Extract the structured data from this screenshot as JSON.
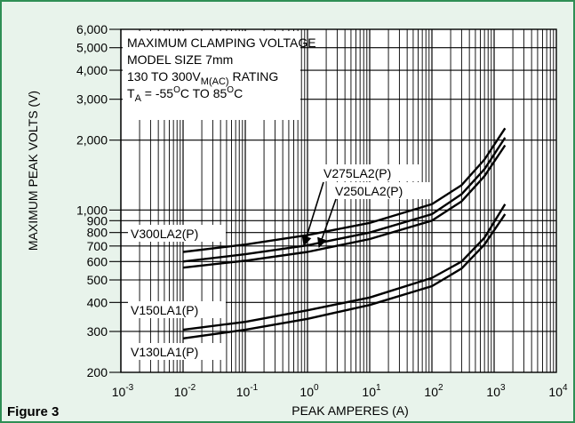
{
  "figure_label": "Figure 3",
  "chart_data": {
    "type": "line",
    "xlabel": "PEAK AMPERES (A)",
    "ylabel": "MAXIMUM PEAK VOLTS (V)",
    "xscale": "log",
    "yscale": "log",
    "xlim": [
      0.001,
      10000
    ],
    "ylim": [
      200,
      6000
    ],
    "grid": true,
    "x_ticks": [
      {
        "value": 0.001,
        "base": "10",
        "exp": "-3"
      },
      {
        "value": 0.01,
        "base": "10",
        "exp": "-2"
      },
      {
        "value": 0.1,
        "base": "10",
        "exp": "-1"
      },
      {
        "value": 1,
        "base": "10",
        "exp": "0"
      },
      {
        "value": 10,
        "base": "10",
        "exp": "1"
      },
      {
        "value": 100,
        "base": "10",
        "exp": "2"
      },
      {
        "value": 1000,
        "base": "10",
        "exp": "3"
      },
      {
        "value": 10000,
        "base": "10",
        "exp": "4"
      }
    ],
    "y_ticks": [
      {
        "value": 200,
        "label": "200"
      },
      {
        "value": 300,
        "label": "300"
      },
      {
        "value": 400,
        "label": "400"
      },
      {
        "value": 500,
        "label": "500"
      },
      {
        "value": 600,
        "label": "600"
      },
      {
        "value": 700,
        "label": "700"
      },
      {
        "value": 800,
        "label": "800"
      },
      {
        "value": 900,
        "label": "900"
      },
      {
        "value": 1000,
        "label": "1,000"
      },
      {
        "value": 2000,
        "label": "2,000"
      },
      {
        "value": 3000,
        "label": "3,000"
      },
      {
        "value": 4000,
        "label": "4,000"
      },
      {
        "value": 5000,
        "label": "5,000"
      },
      {
        "value": 6000,
        "label": "6,000"
      }
    ],
    "info_box": [
      {
        "parts": [
          {
            "t": "MAXIMUM CLAMPING VOLTAGE"
          }
        ]
      },
      {
        "parts": [
          {
            "t": "MODEL SIZE 7mm"
          }
        ]
      },
      {
        "parts": [
          {
            "t": "130 TO 300V"
          },
          {
            "t": "M(AC)",
            "sub": true
          },
          {
            "t": " RATING"
          }
        ]
      },
      {
        "parts": [
          {
            "t": "T"
          },
          {
            "t": "A",
            "sub": true
          },
          {
            "t": " = -55"
          },
          {
            "t": "O",
            "sup": true
          },
          {
            "t": "C TO 85"
          },
          {
            "t": "O",
            "sup": true
          },
          {
            "t": "C"
          }
        ]
      }
    ],
    "series": [
      {
        "name": "V300LA2(P)",
        "x": [
          0.01,
          0.1,
          1,
          10,
          100,
          300,
          700,
          1500
        ],
        "y": [
          660,
          710,
          780,
          880,
          1060,
          1280,
          1650,
          2250
        ]
      },
      {
        "name": "V275LA2(P)",
        "x": [
          0.01,
          0.1,
          1,
          10,
          100,
          300,
          700,
          1500
        ],
        "y": [
          600,
          645,
          705,
          800,
          960,
          1170,
          1500,
          2050
        ]
      },
      {
        "name": "V250LA2(P)",
        "x": [
          0.01,
          0.1,
          1,
          10,
          100,
          300,
          700,
          1500
        ],
        "y": [
          565,
          605,
          660,
          750,
          900,
          1090,
          1400,
          1900
        ]
      },
      {
        "name": "V150LA1(P)",
        "x": [
          0.01,
          0.1,
          1,
          10,
          100,
          300,
          700,
          1500
        ],
        "y": [
          305,
          330,
          370,
          420,
          510,
          600,
          760,
          1060
        ]
      },
      {
        "name": "V130LA1(P)",
        "x": [
          0.01,
          0.1,
          1,
          10,
          100,
          300,
          700,
          1500
        ],
        "y": [
          280,
          305,
          340,
          390,
          470,
          560,
          710,
          960
        ]
      }
    ],
    "annotations": [
      {
        "text": "V300LA2(P)"
      },
      {
        "text": "V275LA2(P)"
      },
      {
        "text": "V250LA2(P)"
      },
      {
        "text": "V150LA1(P)"
      },
      {
        "text": "V130LA1(P)"
      }
    ]
  }
}
